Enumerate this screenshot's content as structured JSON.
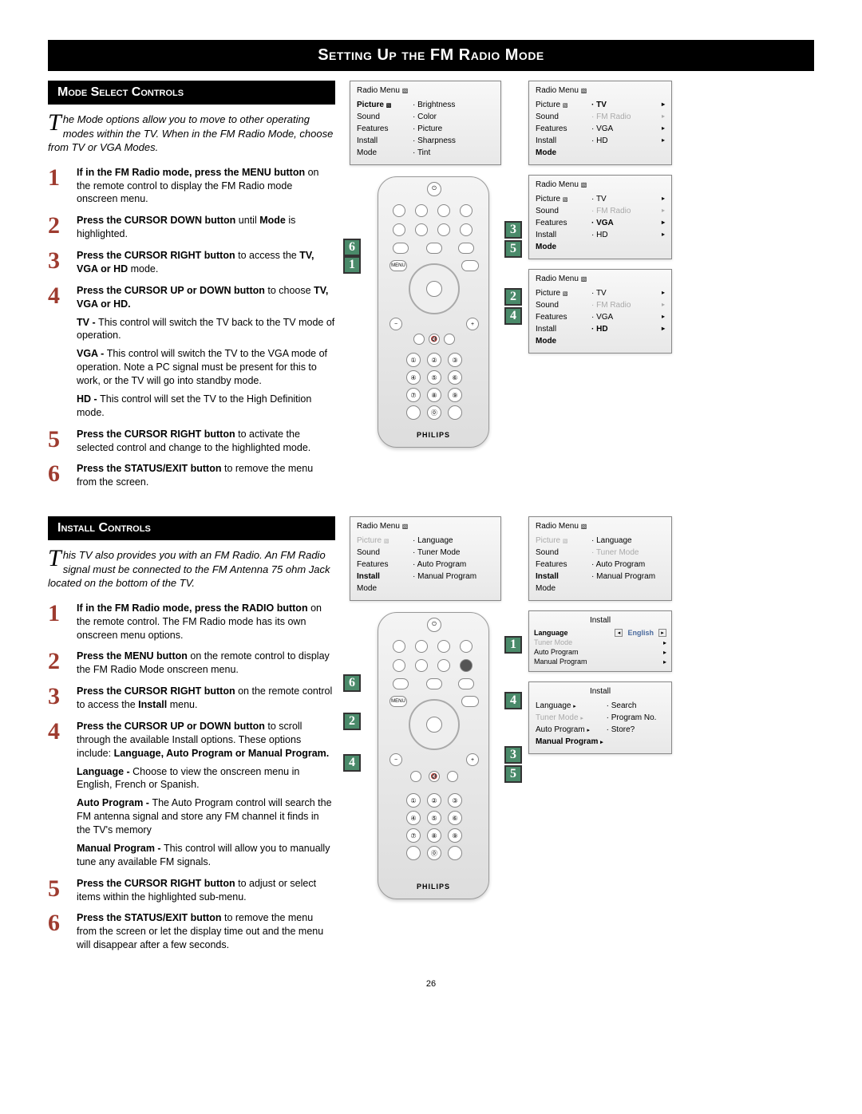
{
  "page": {
    "title": "Setting Up the FM Radio Mode",
    "number": "26"
  },
  "modeSelect": {
    "header": "Mode Select Controls",
    "introFirst": "T",
    "intro": "he Mode options allow you to move to other operating modes within the TV. When in the FM Radio Mode, choose from TV or VGA Modes.",
    "steps": [
      {
        "n": "1",
        "bold": "If in the FM Radio mode, press the MENU button",
        "rest": " on the remote control to display the FM Radio mode onscreen menu."
      },
      {
        "n": "2",
        "bold": "Press the CURSOR DOWN button",
        "rest": " until ",
        "bold2": "Mode",
        "rest2": " is highlighted."
      },
      {
        "n": "3",
        "bold": "Press the CURSOR RIGHT button",
        "rest": " to access the ",
        "bold2": "TV, VGA or HD",
        "rest2": " mode."
      },
      {
        "n": "4",
        "bold": "Press the CURSOR UP or DOWN button",
        "rest": " to choose ",
        "bold2": "TV, VGA or HD.",
        "sub": [
          {
            "b": "TV - ",
            "t": "This control will switch the TV back to the TV mode of operation."
          },
          {
            "b": "VGA - ",
            "t": "This control will switch the TV to the VGA mode of operation. Note a PC signal must be present for this to work, or the TV will go into standby mode."
          },
          {
            "b": "HD - ",
            "t": "This control will set the TV to the High Definition mode."
          }
        ]
      },
      {
        "n": "5",
        "bold": "Press the CURSOR RIGHT button",
        "rest": " to activate the selected control and change to the highlighted mode."
      },
      {
        "n": "6",
        "bold": "Press the STATUS/EXIT button",
        "rest": " to remove the menu from the screen."
      }
    ],
    "osd1": {
      "title": "Radio Menu",
      "left": [
        "Picture",
        "Sound",
        "Features",
        "Install",
        "Mode"
      ],
      "right": [
        "Brightness",
        "Color",
        "Picture",
        "Sharpness",
        "Tint"
      ],
      "boldLeft": "Picture"
    },
    "osdMode": [
      {
        "title": "Radio Menu",
        "left": [
          "Picture",
          "Sound",
          "Features",
          "Install",
          "Mode"
        ],
        "right": [
          "TV",
          "FM Radio",
          "VGA",
          "HD"
        ],
        "boldLeft": "Mode",
        "boldRight": "TV",
        "dimRight": [
          "FM Radio"
        ]
      },
      {
        "title": "Radio Menu",
        "left": [
          "Picture",
          "Sound",
          "Features",
          "Install",
          "Mode"
        ],
        "right": [
          "TV",
          "FM Radio",
          "VGA",
          "HD"
        ],
        "boldLeft": "Mode",
        "boldRight": "VGA",
        "dimRight": [
          "FM Radio"
        ]
      },
      {
        "title": "Radio Menu",
        "left": [
          "Picture",
          "Sound",
          "Features",
          "Install",
          "Mode"
        ],
        "right": [
          "TV",
          "FM Radio",
          "VGA",
          "HD"
        ],
        "boldLeft": "Mode",
        "boldRight": "HD",
        "dimRight": [
          "FM Radio"
        ]
      }
    ],
    "brand": "PHILIPS"
  },
  "install": {
    "header": "Install Controls",
    "introFirst": "T",
    "intro": "his TV also provides you with an FM Radio. An FM Radio signal must be connected to the FM Antenna 75 ohm Jack located on the bottom of the TV.",
    "steps": [
      {
        "n": "1",
        "bold": "If in the FM Radio mode, press the RADIO button",
        "rest": " on the remote control. The FM Radio mode has its own onscreen menu options."
      },
      {
        "n": "2",
        "bold": "Press the MENU button",
        "rest": " on the remote control to display the FM Radio Mode onscreen menu."
      },
      {
        "n": "3",
        "bold": "Press the CURSOR RIGHT button",
        "rest": " on the remote control to access the ",
        "bold2": "Install",
        "rest2": " menu."
      },
      {
        "n": "4",
        "bold": "Press the CURSOR UP or DOWN button",
        "rest": " to scroll through the available Install options. These options include: ",
        "bold2": "Language, Auto Program or Manual Program.",
        "sub": [
          {
            "b": "Language - ",
            "t": "Choose to view the onscreen menu in English, French or Spanish."
          },
          {
            "b": "Auto Program - ",
            "t": "The Auto Program control will search the FM antenna signal and store any FM channel it finds in the TV's memory"
          },
          {
            "b": "Manual Program - ",
            "t": "This control will allow you to manually tune any available FM signals."
          }
        ]
      },
      {
        "n": "5",
        "bold": "Press the CURSOR RIGHT button",
        "rest": " to adjust or select items within the highlighted sub-menu."
      },
      {
        "n": "6",
        "bold": "Press the STATUS/EXIT button",
        "rest": " to remove the menu from the screen or let the display time out and the menu will disappear after a few seconds."
      }
    ],
    "osdInstall": {
      "title": "Radio Menu",
      "left": [
        "Picture",
        "Sound",
        "Features",
        "Install",
        "Mode"
      ],
      "right": [
        "Language",
        "Tuner Mode",
        "Auto Program",
        "Manual Program"
      ],
      "boldLeft": "Install",
      "dimLeft": [
        "Picture"
      ]
    },
    "osdInstall2": {
      "title": "Radio Menu",
      "left": [
        "Picture",
        "Sound",
        "Features",
        "Install",
        "Mode"
      ],
      "right": [
        "Language",
        "Tuner Mode",
        "Auto Program",
        "Manual Program"
      ],
      "boldLeft": "Install",
      "dimLeft": [
        "Picture"
      ],
      "dimRight": [
        "Tuner Mode"
      ]
    },
    "osdLang": {
      "title": "Install",
      "rows": [
        "Language",
        "Tuner Mode",
        "Auto Program",
        "Manual Program"
      ],
      "boldRow": "Language",
      "dimRow": [
        "Tuner Mode"
      ],
      "value": "English"
    },
    "osdManual": {
      "title": "Install",
      "left": [
        "Language",
        "Tuner Mode",
        "Auto Program",
        "Manual Program"
      ],
      "right": [
        "Search",
        "Program No.",
        "Store?"
      ],
      "boldLeft": "Manual Program",
      "dimLeft": [
        "Tuner Mode"
      ]
    },
    "brand": "PHILIPS"
  },
  "style": {
    "accent": "#9e3b2f",
    "callout": "#4a8a6a"
  }
}
